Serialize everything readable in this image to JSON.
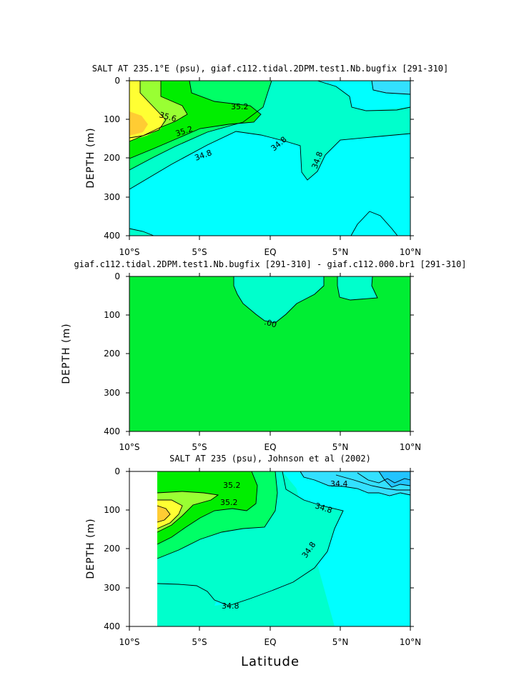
{
  "chart_data": [
    {
      "type": "contour",
      "title": "SALT AT 235.1°E (psu), giaf.c112.tidal.2DPM.test1.Nb.bugfix [291-310]",
      "ylabel": "DEPTH (m)",
      "xlabel": "",
      "x_ticks": [
        "10°S",
        "5°S",
        "EQ",
        "5°N",
        "10°N"
      ],
      "y_ticks": [
        "0",
        "100",
        "200",
        "300",
        "400"
      ],
      "xlim": [
        -10,
        10
      ],
      "ylim": [
        0,
        400
      ],
      "contour_labels": [
        "35.6",
        "35.2",
        "35.2",
        "34.8",
        "34.8",
        "34.8"
      ],
      "fill_levels": [
        {
          "level": 34.4,
          "color": "#33e0ff"
        },
        {
          "level": 34.6,
          "color": "#00ffff"
        },
        {
          "level": 34.8,
          "color": "#00ffcc"
        },
        {
          "level": 35.0,
          "color": "#00ff66"
        },
        {
          "level": 35.2,
          "color": "#00ee00"
        },
        {
          "level": 35.4,
          "color": "#99ff33"
        },
        {
          "level": 35.6,
          "color": "#ffff33"
        },
        {
          "level": 35.8,
          "color": "#ffcc33"
        }
      ]
    },
    {
      "type": "contour",
      "title": "giaf.c112.tidal.2DPM.test1.Nb.bugfix [291-310] - giaf.c112.000.br1 [291-310]",
      "ylabel": "DEPTH (m)",
      "xlabel": "",
      "x_ticks": [
        "10°S",
        "5°S",
        "EQ",
        "5°N",
        "10°N"
      ],
      "y_ticks": [
        "0",
        "100",
        "200",
        "300",
        "400"
      ],
      "xlim": [
        -10,
        10
      ],
      "ylim": [
        0,
        400
      ],
      "contour_labels": [
        ".00"
      ]
    },
    {
      "type": "contour",
      "title": "SALT AT 235 (psu), Johnson et al (2002)",
      "ylabel": "DEPTH (m)",
      "xlabel": "Latitude",
      "x_ticks": [
        "10°S",
        "5°S",
        "EQ",
        "5°N",
        "10°N"
      ],
      "y_ticks": [
        "0",
        "100",
        "200",
        "300",
        "400"
      ],
      "xlim": [
        -10,
        10
      ],
      "ylim": [
        0,
        400
      ],
      "contour_labels": [
        "35.2",
        "35.2",
        "34.4",
        "34.8",
        "34.8",
        "34.8"
      ]
    }
  ]
}
